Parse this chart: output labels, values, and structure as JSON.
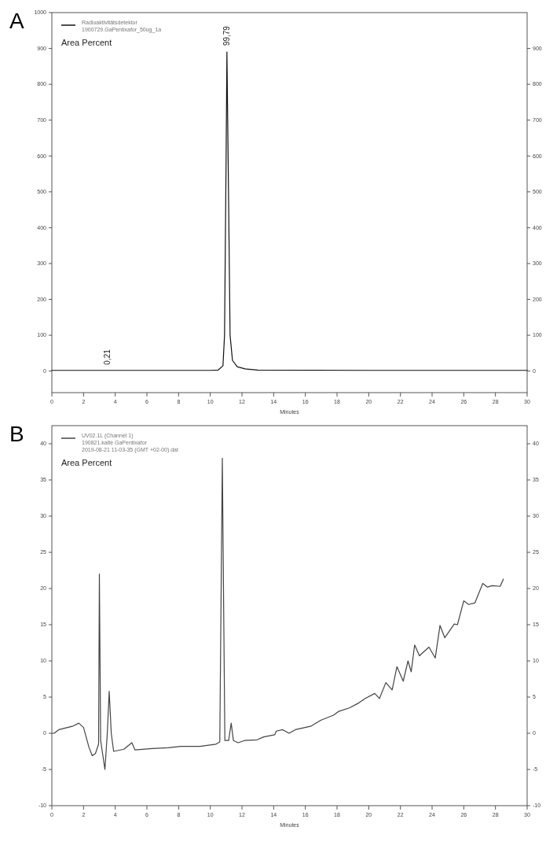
{
  "chart_data": [
    {
      "type": "line",
      "title": "A",
      "xlabel": "Minutes",
      "annotations": [
        "Area Percent",
        {
          "text": "0,21",
          "x": 3.5,
          "y": 0
        },
        {
          "text": "99,79",
          "x": 11.05,
          "y": 890
        }
      ],
      "legend": "top left",
      "grid": false,
      "line_style": "solid",
      "xlim": [
        0,
        30
      ],
      "xticks": [
        0,
        2,
        4,
        6,
        8,
        10,
        12,
        14,
        16,
        18,
        20,
        22,
        24,
        26,
        28,
        30
      ],
      "ylim": [
        -60,
        1000
      ],
      "yticks": [
        0,
        100,
        200,
        300,
        400,
        500,
        600,
        700,
        800,
        900,
        1000
      ],
      "y2lim": [
        -60,
        1000
      ],
      "y2ticks": [
        0,
        100,
        200,
        300,
        400,
        500,
        600,
        700,
        800,
        900
      ],
      "series": [
        {
          "name": "Radioaktivitätsdetektor\n1900729.GaPentixafor_50ug_1a",
          "color": "#111111",
          "x": [
            0,
            5,
            10,
            10.5,
            10.8,
            10.9,
            11.0,
            11.05,
            11.15,
            11.25,
            11.4,
            11.7,
            12.2,
            13,
            20,
            30
          ],
          "values": [
            2,
            2,
            2,
            3,
            15,
            100,
            600,
            890,
            500,
            100,
            30,
            12,
            6,
            3,
            2,
            2
          ]
        }
      ]
    },
    {
      "type": "line",
      "title": "B",
      "xlabel": "Minutes",
      "annotations": [
        "Area Percent"
      ],
      "legend": "top left",
      "grid": false,
      "line_style": "solid",
      "xlim": [
        0,
        30
      ],
      "xticks": [
        0,
        2,
        4,
        6,
        8,
        10,
        12,
        14,
        16,
        18,
        20,
        22,
        24,
        26,
        28,
        30
      ],
      "ylim": [
        -10,
        42.5
      ],
      "yticks": [
        -10,
        -5,
        0,
        5,
        10,
        15,
        20,
        25,
        30,
        35,
        40
      ],
      "y2lim": [
        -10,
        42.5
      ],
      "y2ticks": [
        -10,
        -5,
        0,
        5,
        10,
        15,
        20,
        25,
        30,
        35,
        40
      ],
      "series": [
        {
          "name": "UV02.1L (Channel 1)\n190821.kalte GaPentixafor\n2019-08-21  11-03-35 (GMT +02-00).dat",
          "color": "#444444",
          "x": [
            0,
            0.14,
            0.44,
            1.34,
            1.7,
            2.0,
            2.35,
            2.55,
            2.75,
            2.95,
            3.0,
            3.08,
            3.35,
            3.5,
            3.62,
            3.75,
            3.9,
            4.55,
            5.05,
            5.25,
            6.35,
            7.35,
            8.15,
            9.35,
            10.36,
            10.6,
            10.76,
            10.92,
            11.16,
            11.32,
            11.46,
            11.76,
            12.16,
            12.96,
            13.37,
            14.07,
            14.17,
            14.57,
            14.97,
            15.37,
            16.37,
            16.97,
            17.78,
            18.08,
            18.78,
            19.38,
            19.78,
            20.38,
            20.68,
            21.08,
            21.48,
            21.78,
            22.18,
            22.48,
            22.68,
            22.9,
            23.2,
            23.8,
            24.2,
            24.5,
            24.8,
            25.4,
            25.6,
            26.0,
            26.3,
            26.7,
            27.2,
            27.5,
            27.8,
            28.3,
            28.5
          ],
          "values": [
            0,
            0,
            0.5,
            1,
            1.4,
            0.8,
            -2,
            -3.1,
            -2.8,
            -1.5,
            22,
            -1,
            -5,
            0,
            5.8,
            0,
            -2.5,
            -2.2,
            -1.3,
            -2.3,
            -2.1,
            -2,
            -1.8,
            -1.8,
            -1.5,
            -1.2,
            38,
            -1,
            -1,
            1.4,
            -1,
            -1.3,
            -1,
            -0.9,
            -0.5,
            -0.2,
            0.3,
            0.5,
            0,
            0.5,
            1,
            1.8,
            2.5,
            3,
            3.5,
            4.2,
            4.8,
            5.5,
            4.8,
            7,
            6,
            9.2,
            7.2,
            10,
            8.5,
            12.2,
            10.7,
            11.9,
            10.4,
            14.9,
            13.2,
            15.1,
            15,
            18.3,
            17.8,
            18,
            20.7,
            20.2,
            20.4,
            20.3,
            21.3
          ]
        }
      ]
    }
  ]
}
